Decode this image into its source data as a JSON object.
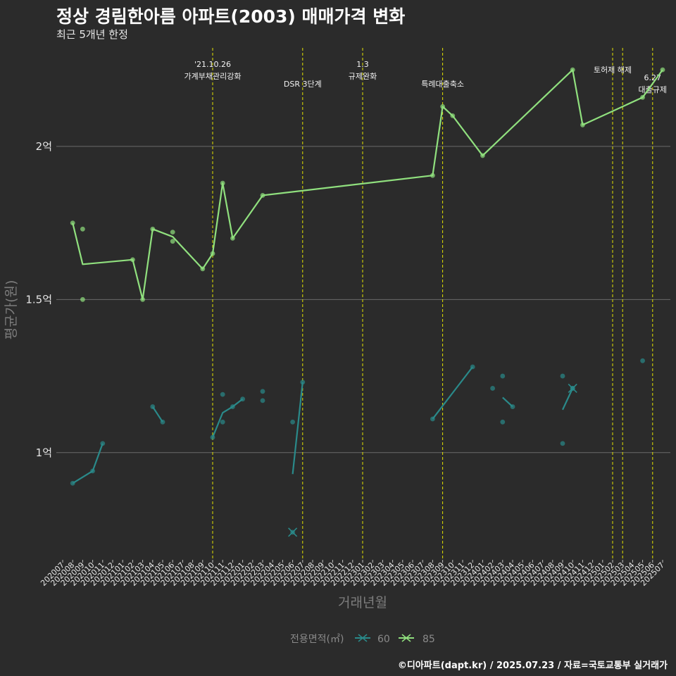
{
  "header": {
    "title": "정상 경림한아름 아파트(2003) 매매가격 변화",
    "subtitle": "최근 5개년 한정"
  },
  "footer": {
    "caption": "©디아파트(dapt.kr) / 2025.07.23 / 자료=국토교통부 실거래가"
  },
  "colors": {
    "background": "#2b2b2b",
    "grid": "#6b6b6b",
    "series_60": "#2a8a8a",
    "series_85": "#90e07e",
    "event_line": "#e3e300"
  },
  "chart_data": {
    "type": "line",
    "xlabel": "거래년월",
    "ylabel": "평균가(원)",
    "x_categories": [
      "202007",
      "202008",
      "202009",
      "202010",
      "202011",
      "202012",
      "202101",
      "202102",
      "202103",
      "202104",
      "202105",
      "202106",
      "202107",
      "202108",
      "202109",
      "202110",
      "202111",
      "202112",
      "202201",
      "202202",
      "202203",
      "202204",
      "202205",
      "202206",
      "202207",
      "202208",
      "202209",
      "202210",
      "202211",
      "202212",
      "202301",
      "202302",
      "202303",
      "202304",
      "202305",
      "202306",
      "202307",
      "202308",
      "202309",
      "202310",
      "202311",
      "202312",
      "202401",
      "202402",
      "202403",
      "202404",
      "202405",
      "202406",
      "202407",
      "202408",
      "202409",
      "202410",
      "202411",
      "202412",
      "202501",
      "202502",
      "202503",
      "202504",
      "202505",
      "202506",
      "202507"
    ],
    "y_ticks": [
      {
        "value": 100000000,
        "label": "1억"
      },
      {
        "value": 150000000,
        "label": "1.5억"
      },
      {
        "value": 200000000,
        "label": "2억"
      }
    ],
    "ylim": [
      65000000,
      234000000
    ],
    "grid": "horizontal major",
    "legend": {
      "title": "전용면적(㎡)",
      "position": "bottom",
      "items": [
        "60",
        "85"
      ]
    },
    "events": [
      {
        "x": "202110",
        "lines": [
          "'21.10.26",
          "가계부채관리강화"
        ]
      },
      {
        "x": "202207",
        "lines": [
          "DSR 3단계"
        ]
      },
      {
        "x": "202301",
        "lines": [
          "1.3",
          "규제완화"
        ]
      },
      {
        "x": "202309",
        "lines": [
          "특례대출축소"
        ]
      },
      {
        "x": "202502",
        "lines": [
          "토허제 해제"
        ]
      },
      {
        "x": "202503",
        "lines": []
      },
      {
        "x": "202506",
        "lines": [
          "6.27",
          "대출규제"
        ]
      }
    ],
    "series": [
      {
        "name": "60",
        "line_segments": [
          [
            {
              "x": "202008",
              "y": 90000000
            },
            {
              "x": "202010",
              "y": 94000000
            },
            {
              "x": "202011",
              "y": 103000000
            }
          ],
          [
            {
              "x": "202104",
              "y": 115000000
            },
            {
              "x": "202105",
              "y": 110000000
            }
          ],
          [
            {
              "x": "202110",
              "y": 105000000
            },
            {
              "x": "202111",
              "y": 113000000
            },
            {
              "x": "202112",
              "y": 115000000
            },
            {
              "x": "202201",
              "y": 117500000
            }
          ],
          [
            {
              "x": "202206",
              "y": 93000000
            },
            {
              "x": "202207",
              "y": 123000000
            }
          ],
          [
            {
              "x": "202308",
              "y": 111000000
            },
            {
              "x": "202312",
              "y": 128000000
            }
          ],
          [
            {
              "x": "202403",
              "y": 118000000
            },
            {
              "x": "202404",
              "y": 115000000
            }
          ],
          [
            {
              "x": "202409",
              "y": 114000000
            },
            {
              "x": "202410",
              "y": 121000000
            }
          ]
        ],
        "points": [
          {
            "x": "202008",
            "y": 90000000
          },
          {
            "x": "202010",
            "y": 94000000
          },
          {
            "x": "202011",
            "y": 103000000
          },
          {
            "x": "202104",
            "y": 115000000
          },
          {
            "x": "202105",
            "y": 110000000
          },
          {
            "x": "202110",
            "y": 105000000
          },
          {
            "x": "202111",
            "y": 119000000
          },
          {
            "x": "202111",
            "y": 110000000
          },
          {
            "x": "202112",
            "y": 115000000
          },
          {
            "x": "202201",
            "y": 117500000
          },
          {
            "x": "202203",
            "y": 120000000
          },
          {
            "x": "202203",
            "y": 117000000
          },
          {
            "x": "202206",
            "y": 110000000
          },
          {
            "x": "202207",
            "y": 123000000
          },
          {
            "x": "202308",
            "y": 111000000
          },
          {
            "x": "202312",
            "y": 128000000
          },
          {
            "x": "202402",
            "y": 121000000
          },
          {
            "x": "202403",
            "y": 125000000
          },
          {
            "x": "202403",
            "y": 110000000
          },
          {
            "x": "202404",
            "y": 115000000
          },
          {
            "x": "202409",
            "y": 125000000
          },
          {
            "x": "202409",
            "y": 103000000
          },
          {
            "x": "202410",
            "y": 121000000
          },
          {
            "x": "202505",
            "y": 130000000
          }
        ],
        "cross_marks": [
          {
            "x": "202206",
            "y": 74000000
          },
          {
            "x": "202410",
            "y": 121000000
          }
        ]
      },
      {
        "name": "85",
        "line_segments": [
          [
            {
              "x": "202008",
              "y": 175000000
            },
            {
              "x": "202009",
              "y": 161500000
            },
            {
              "x": "202102",
              "y": 163000000
            },
            {
              "x": "202103",
              "y": 150000000
            },
            {
              "x": "202104",
              "y": 173000000
            },
            {
              "x": "202106",
              "y": 170500000
            },
            {
              "x": "202109",
              "y": 160000000
            },
            {
              "x": "202110",
              "y": 165000000
            },
            {
              "x": "202111",
              "y": 188000000
            },
            {
              "x": "202112",
              "y": 170000000
            },
            {
              "x": "202203",
              "y": 184000000
            },
            {
              "x": "202308",
              "y": 190500000
            },
            {
              "x": "202309",
              "y": 213000000
            },
            {
              "x": "202310",
              "y": 210000000
            },
            {
              "x": "202401",
              "y": 197000000
            },
            {
              "x": "202410",
              "y": 225000000
            },
            {
              "x": "202411",
              "y": 207000000
            },
            {
              "x": "202505",
              "y": 216000000
            },
            {
              "x": "202507",
              "y": 225000000
            }
          ]
        ],
        "points": [
          {
            "x": "202008",
            "y": 175000000
          },
          {
            "x": "202009",
            "y": 173000000
          },
          {
            "x": "202009",
            "y": 150000000
          },
          {
            "x": "202102",
            "y": 163000000
          },
          {
            "x": "202103",
            "y": 150000000
          },
          {
            "x": "202104",
            "y": 173000000
          },
          {
            "x": "202106",
            "y": 172000000
          },
          {
            "x": "202106",
            "y": 169000000
          },
          {
            "x": "202109",
            "y": 160000000
          },
          {
            "x": "202110",
            "y": 165000000
          },
          {
            "x": "202111",
            "y": 188000000
          },
          {
            "x": "202112",
            "y": 170000000
          },
          {
            "x": "202203",
            "y": 184000000
          },
          {
            "x": "202308",
            "y": 190500000
          },
          {
            "x": "202309",
            "y": 213000000
          },
          {
            "x": "202310",
            "y": 210000000
          },
          {
            "x": "202401",
            "y": 197000000
          },
          {
            "x": "202410",
            "y": 225000000
          },
          {
            "x": "202411",
            "y": 207000000
          },
          {
            "x": "202505",
            "y": 216000000
          },
          {
            "x": "202507",
            "y": 225000000
          }
        ],
        "cross_marks": []
      }
    ]
  }
}
